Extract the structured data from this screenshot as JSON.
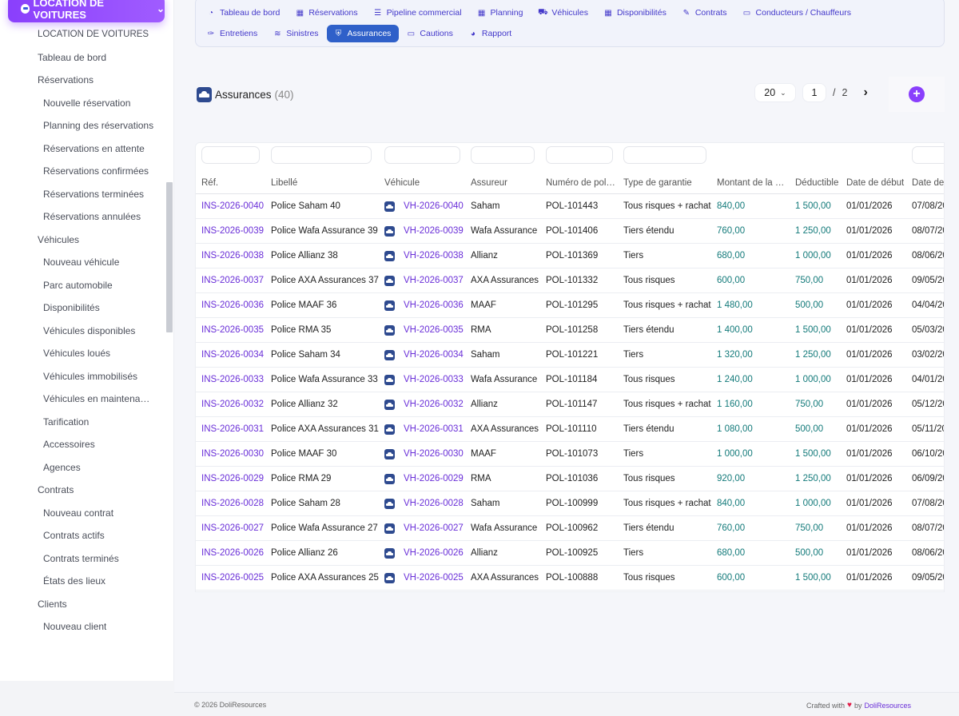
{
  "sidebar": {
    "module_label": "LOCATION DE VOITURES",
    "items": [
      {
        "label": "LOCATION DE VOITURES",
        "level": 0
      },
      {
        "label": "Tableau de bord",
        "level": 0
      },
      {
        "label": "Réservations",
        "level": 0
      },
      {
        "label": "Nouvelle réservation",
        "level": 1
      },
      {
        "label": "Planning des réservations",
        "level": 1
      },
      {
        "label": "Réservations en attente",
        "level": 1
      },
      {
        "label": "Réservations confirmées",
        "level": 1
      },
      {
        "label": "Réservations terminées",
        "level": 1
      },
      {
        "label": "Réservations annulées",
        "level": 1
      },
      {
        "label": "Véhicules",
        "level": 0
      },
      {
        "label": "Nouveau véhicule",
        "level": 1
      },
      {
        "label": "Parc automobile",
        "level": 1
      },
      {
        "label": "Disponibilités",
        "level": 1
      },
      {
        "label": "Véhicules disponibles",
        "level": 1
      },
      {
        "label": "Véhicules loués",
        "level": 1
      },
      {
        "label": "Véhicules immobilisés",
        "level": 1
      },
      {
        "label": "Véhicules en maintenan…",
        "level": 1
      },
      {
        "label": "Tarification",
        "level": 1
      },
      {
        "label": "Accessoires",
        "level": 1
      },
      {
        "label": "Agences",
        "level": 1
      },
      {
        "label": "Contrats",
        "level": 0
      },
      {
        "label": "Nouveau contrat",
        "level": 1
      },
      {
        "label": "Contrats actifs",
        "level": 1
      },
      {
        "label": "Contrats terminés",
        "level": 1
      },
      {
        "label": "États des lieux",
        "level": 1
      },
      {
        "label": "Clients",
        "level": 0
      },
      {
        "label": "Nouveau client",
        "level": 1
      }
    ]
  },
  "tabs": {
    "row1": [
      {
        "label": "Tableau de bord",
        "icon": "dashboard-icon",
        "glyph": "◔"
      },
      {
        "label": "Réservations",
        "icon": "calendar-icon",
        "glyph": "▦"
      },
      {
        "label": "Pipeline commercial",
        "icon": "pipeline-icon",
        "glyph": "☰"
      },
      {
        "label": "Planning",
        "icon": "calendar-icon",
        "glyph": "▦"
      },
      {
        "label": "Véhicules",
        "icon": "car-icon",
        "glyph": "⛟"
      },
      {
        "label": "Disponibilités",
        "icon": "grid-icon",
        "glyph": "▦"
      },
      {
        "label": "Contrats",
        "icon": "contract-icon",
        "glyph": "✎"
      },
      {
        "label": "Conducteurs / Chauffeurs",
        "icon": "id-card-icon",
        "glyph": "▭"
      }
    ],
    "row2": [
      {
        "label": "Entretiens",
        "icon": "wrench-icon",
        "glyph": "✑",
        "active": false
      },
      {
        "label": "Sinistres",
        "icon": "crash-icon",
        "glyph": "≋",
        "active": false
      },
      {
        "label": "Assurances",
        "icon": "shield-icon",
        "glyph": "⛨",
        "active": true
      },
      {
        "label": "Cautions",
        "icon": "money-icon",
        "glyph": "▭",
        "active": false
      },
      {
        "label": "Rapport",
        "icon": "pie-chart-icon",
        "glyph": "◕",
        "active": false
      }
    ]
  },
  "list": {
    "title": "Assurances",
    "count": "(40)",
    "limit": "20",
    "page": "1",
    "page_sep": "/",
    "page_total": "2",
    "next_glyph": "›",
    "add_glyph": "+"
  },
  "table": {
    "headers": [
      "Réf.",
      "Libellé",
      "Véhicule",
      "Assureur",
      "Numéro de pol…",
      "Type de garantie",
      "Montant de la …",
      "Déductible",
      "Date de début",
      "Date de"
    ],
    "rows": [
      {
        "ref": "INS-2026-0040",
        "label": "Police Saham 40",
        "vehicle": "VH-2026-0040",
        "insurer": "Saham",
        "policy": "POL-101443",
        "type": "Tous risques + rachat",
        "amount": "840,00",
        "deductible": "1 500,00",
        "start": "01/01/2026",
        "end": "07/08/20"
      },
      {
        "ref": "INS-2026-0039",
        "label": "Police Wafa Assurance 39",
        "vehicle": "VH-2026-0039",
        "insurer": "Wafa Assurance",
        "policy": "POL-101406",
        "type": "Tiers étendu",
        "amount": "760,00",
        "deductible": "1 250,00",
        "start": "01/01/2026",
        "end": "08/07/20"
      },
      {
        "ref": "INS-2026-0038",
        "label": "Police Allianz 38",
        "vehicle": "VH-2026-0038",
        "insurer": "Allianz",
        "policy": "POL-101369",
        "type": "Tiers",
        "amount": "680,00",
        "deductible": "1 000,00",
        "start": "01/01/2026",
        "end": "08/06/20"
      },
      {
        "ref": "INS-2026-0037",
        "label": "Police AXA Assurances 37",
        "vehicle": "VH-2026-0037",
        "insurer": "AXA Assurances",
        "policy": "POL-101332",
        "type": "Tous risques",
        "amount": "600,00",
        "deductible": "750,00",
        "start": "01/01/2026",
        "end": "09/05/20"
      },
      {
        "ref": "INS-2026-0036",
        "label": "Police MAAF 36",
        "vehicle": "VH-2026-0036",
        "insurer": "MAAF",
        "policy": "POL-101295",
        "type": "Tous risques + rachat",
        "amount": "1 480,00",
        "deductible": "500,00",
        "start": "01/01/2026",
        "end": "04/04/20"
      },
      {
        "ref": "INS-2026-0035",
        "label": "Police RMA 35",
        "vehicle": "VH-2026-0035",
        "insurer": "RMA",
        "policy": "POL-101258",
        "type": "Tiers étendu",
        "amount": "1 400,00",
        "deductible": "1 500,00",
        "start": "01/01/2026",
        "end": "05/03/20"
      },
      {
        "ref": "INS-2026-0034",
        "label": "Police Saham 34",
        "vehicle": "VH-2026-0034",
        "insurer": "Saham",
        "policy": "POL-101221",
        "type": "Tiers",
        "amount": "1 320,00",
        "deductible": "1 250,00",
        "start": "01/01/2026",
        "end": "03/02/20"
      },
      {
        "ref": "INS-2026-0033",
        "label": "Police Wafa Assurance 33",
        "vehicle": "VH-2026-0033",
        "insurer": "Wafa Assurance",
        "policy": "POL-101184",
        "type": "Tous risques",
        "amount": "1 240,00",
        "deductible": "1 000,00",
        "start": "01/01/2026",
        "end": "04/01/20"
      },
      {
        "ref": "INS-2026-0032",
        "label": "Police Allianz 32",
        "vehicle": "VH-2026-0032",
        "insurer": "Allianz",
        "policy": "POL-101147",
        "type": "Tous risques + rachat",
        "amount": "1 160,00",
        "deductible": "750,00",
        "start": "01/01/2026",
        "end": "05/12/20"
      },
      {
        "ref": "INS-2026-0031",
        "label": "Police AXA Assurances 31",
        "vehicle": "VH-2026-0031",
        "insurer": "AXA Assurances",
        "policy": "POL-101110",
        "type": "Tiers étendu",
        "amount": "1 080,00",
        "deductible": "500,00",
        "start": "01/01/2026",
        "end": "05/11/20"
      },
      {
        "ref": "INS-2026-0030",
        "label": "Police MAAF 30",
        "vehicle": "VH-2026-0030",
        "insurer": "MAAF",
        "policy": "POL-101073",
        "type": "Tiers",
        "amount": "1 000,00",
        "deductible": "1 500,00",
        "start": "01/01/2026",
        "end": "06/10/20"
      },
      {
        "ref": "INS-2026-0029",
        "label": "Police RMA 29",
        "vehicle": "VH-2026-0029",
        "insurer": "RMA",
        "policy": "POL-101036",
        "type": "Tous risques",
        "amount": "920,00",
        "deductible": "1 250,00",
        "start": "01/01/2026",
        "end": "06/09/20"
      },
      {
        "ref": "INS-2026-0028",
        "label": "Police Saham 28",
        "vehicle": "VH-2026-0028",
        "insurer": "Saham",
        "policy": "POL-100999",
        "type": "Tous risques + rachat",
        "amount": "840,00",
        "deductible": "1 000,00",
        "start": "01/01/2026",
        "end": "07/08/20"
      },
      {
        "ref": "INS-2026-0027",
        "label": "Police Wafa Assurance 27",
        "vehicle": "VH-2026-0027",
        "insurer": "Wafa Assurance",
        "policy": "POL-100962",
        "type": "Tiers étendu",
        "amount": "760,00",
        "deductible": "750,00",
        "start": "01/01/2026",
        "end": "08/07/20"
      },
      {
        "ref": "INS-2026-0026",
        "label": "Police Allianz 26",
        "vehicle": "VH-2026-0026",
        "insurer": "Allianz",
        "policy": "POL-100925",
        "type": "Tiers",
        "amount": "680,00",
        "deductible": "500,00",
        "start": "01/01/2026",
        "end": "08/06/20"
      },
      {
        "ref": "INS-2026-0025",
        "label": "Police AXA Assurances 25",
        "vehicle": "VH-2026-0025",
        "insurer": "AXA Assurances",
        "policy": "POL-100888",
        "type": "Tous risques",
        "amount": "600,00",
        "deductible": "1 500,00",
        "start": "01/01/2026",
        "end": "09/05/20"
      }
    ]
  },
  "footer": {
    "copyright": "© 2026 DoliResources",
    "crafted": "Crafted with",
    "heart": "♥",
    "by": "by",
    "brand": "DoliResources"
  },
  "colors": {
    "accent": "#8a3ffc",
    "link": "#6a2fd8",
    "tab_active": "#2f60c9",
    "amount": "#137a7a",
    "heart": "#e11d48"
  }
}
